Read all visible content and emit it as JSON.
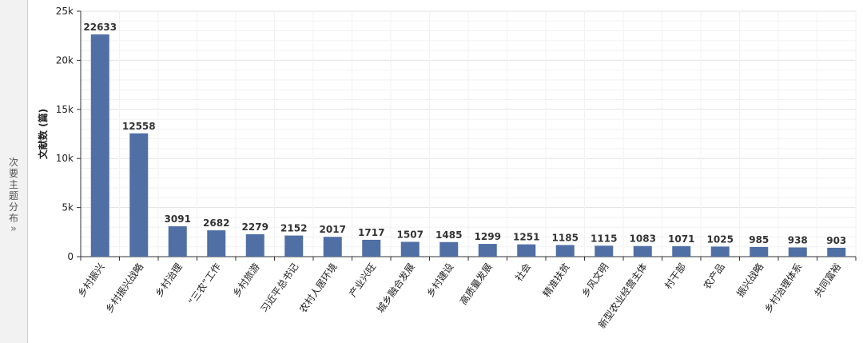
{
  "sidebar": {
    "tab_label": "次要主题分布",
    "expand_icon": "chevron-double-right-icon"
  },
  "colors": {
    "bar": "#4f6fa5",
    "grid_major": "#e3e3e3",
    "grid_minor": "#f2f2f2",
    "axis": "#333333"
  },
  "chart_data": {
    "type": "bar",
    "title": "",
    "xlabel": "",
    "ylabel": "文献数 (篇)",
    "ylim": [
      0,
      25000
    ],
    "yticks": [
      0,
      5000,
      10000,
      15000,
      20000,
      25000
    ],
    "ytick_labels": [
      "0",
      "5k",
      "10k",
      "15k",
      "20k",
      "25k"
    ],
    "grid": true,
    "legend": "none",
    "categories": [
      "乡村振兴",
      "乡村振兴战略",
      "乡村治理",
      "“三农”工作",
      "乡村旅游",
      "习近平总书记",
      "农村人居环境",
      "产业兴旺",
      "城乡融合发展",
      "乡村建设",
      "高质量发展",
      "社会",
      "精准扶贫",
      "乡风文明",
      "新型农业经营主体",
      "村干部",
      "农产品",
      "振兴战略",
      "乡村治理体系",
      "共同富裕"
    ],
    "values": [
      22633,
      12558,
      3091,
      2682,
      2279,
      2152,
      2017,
      1717,
      1507,
      1485,
      1299,
      1251,
      1185,
      1115,
      1083,
      1071,
      1025,
      985,
      938,
      903
    ]
  }
}
